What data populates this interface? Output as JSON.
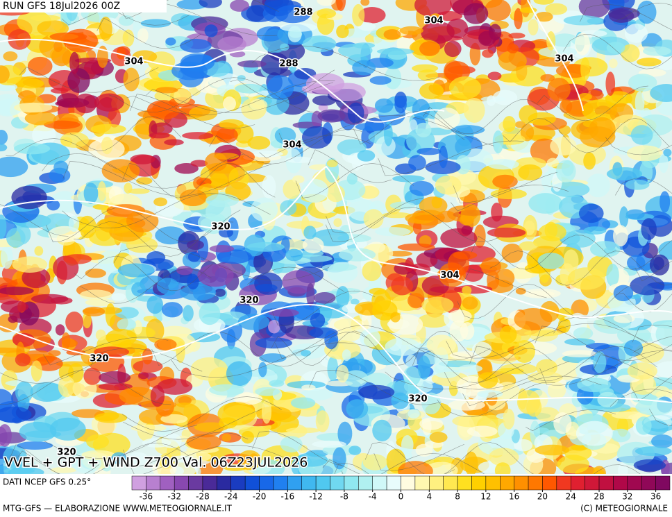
{
  "header": {
    "run": "RUN GFS 18Jul2026 00Z"
  },
  "map": {
    "title": "VVEL + GPT + WIND Z700 Val. 06Z23JUL2026",
    "contour_labels": [
      "288",
      "288",
      "304",
      "304",
      "304",
      "304",
      "304",
      "320",
      "320",
      "320",
      "320",
      "320"
    ]
  },
  "colorbar": {
    "source": "DATI NCEP GFS 0.25°",
    "lim": [
      -38,
      38
    ],
    "ticks": [
      -36,
      -32,
      -28,
      -24,
      -20,
      -16,
      -12,
      -8,
      -4,
      0,
      4,
      8,
      12,
      16,
      20,
      24,
      28,
      32,
      36
    ],
    "colors": [
      "#d0a0e0",
      "#b880d0",
      "#a060c0",
      "#8848b0",
      "#6a3aa0",
      "#4a2a98",
      "#2a2aa0",
      "#1a3cc0",
      "#1050d8",
      "#1868e8",
      "#2080f0",
      "#30a0f0",
      "#40b8f0",
      "#50c8f0",
      "#70d8f0",
      "#90e8f0",
      "#b0f0f0",
      "#d0f8f8",
      "#e8fcfc",
      "#fffce0",
      "#fff8b0",
      "#fff080",
      "#ffe850",
      "#ffe020",
      "#ffd000",
      "#ffc000",
      "#ffa800",
      "#ff9000",
      "#ff7800",
      "#ff5800",
      "#f03820",
      "#e02030",
      "#d01838",
      "#c01040",
      "#b00848",
      "#a00850",
      "#900858",
      "#800860"
    ]
  },
  "footer": {
    "left": "MTG-GFS — ELABORAZIONE WWW.METEOGIORNALE.IT",
    "right": "(C) METEOGIORNALE"
  }
}
